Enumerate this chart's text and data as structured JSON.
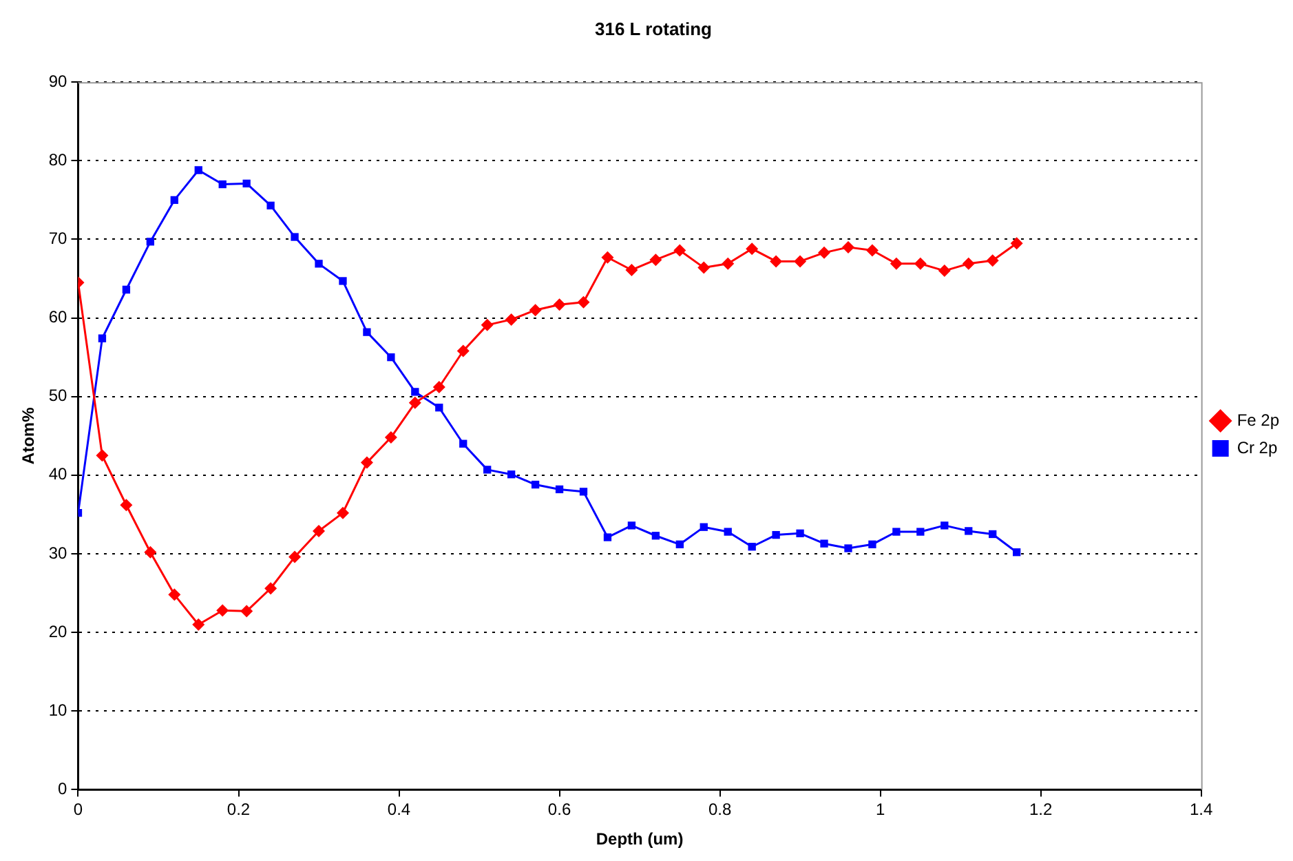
{
  "chart_data": {
    "type": "line",
    "title": "316 L rotating",
    "xlabel": "Depth (um)",
    "ylabel": "Atom%",
    "x": [
      0,
      0.03,
      0.06,
      0.09,
      0.12,
      0.15,
      0.18,
      0.21,
      0.24,
      0.27,
      0.3,
      0.33,
      0.36,
      0.39,
      0.42,
      0.45,
      0.48,
      0.51,
      0.54,
      0.57,
      0.6,
      0.63,
      0.66,
      0.69,
      0.72,
      0.75,
      0.78,
      0.81,
      0.84,
      0.87,
      0.9,
      0.93,
      0.96,
      0.99,
      1.02,
      1.05,
      1.08,
      1.11,
      1.14,
      1.17
    ],
    "series": [
      {
        "name": "Fe 2p",
        "color": "#ff0000",
        "marker": "diamond",
        "values": [
          64.5,
          42.5,
          36.2,
          30.2,
          24.8,
          21,
          22.8,
          22.7,
          25.6,
          29.6,
          32.9,
          35.2,
          41.6,
          44.8,
          49.2,
          51.2,
          55.8,
          59.1,
          59.8,
          61,
          61.7,
          62,
          67.7,
          66.1,
          67.4,
          68.6,
          66.4,
          66.9,
          68.8,
          67.2,
          67.2,
          68.3,
          69,
          68.6,
          66.9,
          66.9,
          66,
          66.9,
          67.3,
          69.5
        ]
      },
      {
        "name": "Cr 2p",
        "color": "#0000ff",
        "marker": "square",
        "values": [
          35.2,
          57.4,
          63.6,
          69.7,
          75,
          78.8,
          77,
          77.1,
          74.3,
          70.3,
          66.9,
          64.7,
          58.2,
          55,
          50.6,
          48.6,
          44,
          40.7,
          40.1,
          38.8,
          38.2,
          37.9,
          32.1,
          33.6,
          32.3,
          31.2,
          33.4,
          32.8,
          30.9,
          32.4,
          32.6,
          31.3,
          30.7,
          31.2,
          32.8,
          32.8,
          33.6,
          32.9,
          32.5,
          30.2
        ]
      }
    ],
    "xlim": [
      0,
      1.4
    ],
    "xticks": [
      0,
      0.2,
      0.4,
      0.6,
      0.8,
      1,
      1.2,
      1.4
    ],
    "ylim": [
      0,
      90
    ],
    "yticks": [
      0,
      10,
      20,
      30,
      40,
      50,
      60,
      70,
      80,
      90
    ],
    "grid": "y",
    "legend": "right",
    "line_style": "solid"
  }
}
